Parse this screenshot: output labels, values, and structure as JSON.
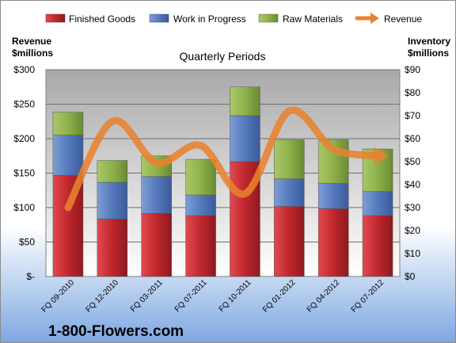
{
  "chart_data": {
    "type": "bar",
    "stacked": true,
    "title": "Quarterly Periods",
    "categories": [
      "FQ 09-2010",
      "FQ 12-2010",
      "FQ 03-2011",
      "FQ 07-2011",
      "FQ 10-2011",
      "FQ 01-2012",
      "FQ 04-2012",
      "FQ 07-2012"
    ],
    "series": [
      {
        "name": "Finished Goods",
        "axis": "right",
        "color": "#c0272d",
        "values": [
          44,
          25,
          27.5,
          26.5,
          50,
          30.5,
          29.5,
          26.5
        ]
      },
      {
        "name": "Work in Progress",
        "axis": "right",
        "color": "#5579bd",
        "values": [
          17.5,
          16,
          16,
          9,
          20,
          12,
          11,
          10.5
        ]
      },
      {
        "name": "Raw Materials",
        "axis": "right",
        "color": "#8fb14a",
        "values": [
          10,
          9.5,
          9,
          15.5,
          12.5,
          17,
          19,
          18.5
        ]
      }
    ],
    "line_series": {
      "name": "Revenue",
      "axis": "left",
      "color": "#e8822f",
      "values": [
        100,
        225,
        165,
        190,
        120,
        240,
        185,
        175
      ]
    },
    "left_axis": {
      "label_line1": "Revenue",
      "label_line2": "$millions",
      "range": [
        0,
        300
      ],
      "ticks": [
        {
          "value": 0,
          "label": "$-"
        },
        {
          "value": 50,
          "label": "$50"
        },
        {
          "value": 100,
          "label": "$100"
        },
        {
          "value": 150,
          "label": "$150"
        },
        {
          "value": 200,
          "label": "$200"
        },
        {
          "value": 250,
          "label": "$250"
        },
        {
          "value": 300,
          "label": "$300"
        }
      ]
    },
    "right_axis": {
      "label_line1": "Inventory",
      "label_line2": "$millions",
      "range": [
        0,
        90
      ],
      "ticks": [
        {
          "value": 0,
          "label": "$0"
        },
        {
          "value": 10,
          "label": "$10"
        },
        {
          "value": 20,
          "label": "$20"
        },
        {
          "value": 30,
          "label": "$30"
        },
        {
          "value": 40,
          "label": "$40"
        },
        {
          "value": 50,
          "label": "$50"
        },
        {
          "value": 60,
          "label": "$60"
        },
        {
          "value": 70,
          "label": "$70"
        },
        {
          "value": 80,
          "label": "$80"
        },
        {
          "value": 90,
          "label": "$90"
        }
      ]
    },
    "legend_position": "top",
    "grid": true
  },
  "company": "1-800-Flowers.com"
}
